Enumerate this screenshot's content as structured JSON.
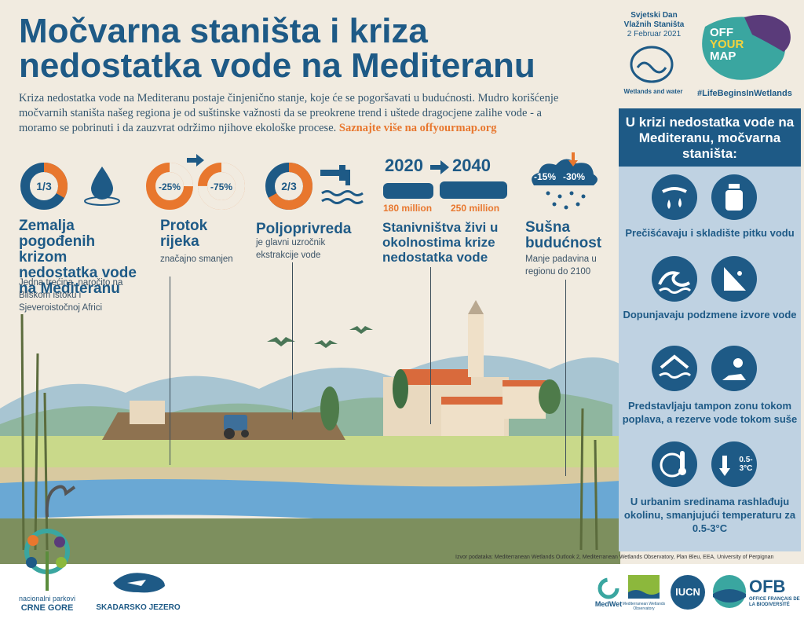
{
  "title": "Močvarna staništa i kriza nedostatka vode na Mediteranu",
  "intro": {
    "text": "Kriza nedostatka vode na Mediteranu postaje činjenično stanje, koje će se pogoršavati u budućnosti. Mudro korišćenje močvarnih staništa našeg regiona je od suštinske važnosti da se preokrene trend i uštede dragocjene zalihe vode - a moramo se pobrinuti i da zauzvrat održimo njihove ekološke procese.",
    "link": "Saznajte više na offyourmap.org"
  },
  "stats": {
    "countries": {
      "value": "1/3",
      "fraction": 0.333,
      "heading": "Zemalja pogođenih krizom nedostatka vode na Mediteranu",
      "sub": "Jedna trećina, naročito na Bliskom istoku i Sjeveroistočnoj Africi"
    },
    "flow": {
      "value_a": "-25%",
      "value_b": "-75%",
      "heading": "Protok rijeka",
      "sub": "značajno smanjen"
    },
    "agriculture": {
      "value": "2/3",
      "fraction": 0.667,
      "heading": "Poljoprivreda",
      "sub": "je glavni uzročnik ekstrakcije vode"
    },
    "habitats": {
      "year_from": "2020",
      "year_to": "2040",
      "pop_from": "180 million",
      "pop_to": "250 million",
      "heading": "Stanivništva živi u okolnostima krize nedostatka vode"
    },
    "drought": {
      "value_a": "-15%",
      "value_b": "-30%",
      "heading": "Sušna budućnost",
      "sub": "Manje padavina u regionu do 2100"
    }
  },
  "wetlands_day": {
    "line1": "Svjetski Dan",
    "line2": "Vlažnih Staništa",
    "date": "2 Februar 2021",
    "logo_text": "Wetlands and water"
  },
  "campaign": {
    "logo_line1": "OFF",
    "logo_line2": "YOUR",
    "logo_line3": "MAP",
    "hashtag": "#LifeBeginsInWetlands"
  },
  "panel": {
    "heading": "U krizi nedostatka vode na Mediteranu, močvarna staništa:",
    "items": [
      {
        "text": "Prečišćavaju i skladište pitku vodu"
      },
      {
        "text": "Dopunjavaju podzmene izvore vode"
      },
      {
        "text": "Predstavljaju tampon zonu tokom poplava, a rezerve vode tokom suše"
      },
      {
        "text": "U urbanim sredinama rashlađuju okolinu, smanjujući temperaturu za 0.5-3°C",
        "badge": "0.5-3°C"
      }
    ]
  },
  "source": "Izvor podataka: Mediterranean Wetlands Outlook 2, Mediterranean Wetlands Observatory, Plan Bleu, EEA, University of Perpignan",
  "footer": {
    "np_line1": "nacionalni parkovi",
    "np_line2": "CRNE GORE",
    "skadar": "SKADARSKO JEZERO",
    "medwet": "MedWet",
    "observatory": "Mediterranean Wetlands Observatory",
    "iucn": "IUCN",
    "ofb": "OFB",
    "ofb_sub": "OFFICE FRANÇAIS DE LA BIODIVERSITÉ"
  },
  "colors": {
    "accent": "#e8772e",
    "primary": "#1e5a86",
    "panel": "#bfd2e2"
  }
}
